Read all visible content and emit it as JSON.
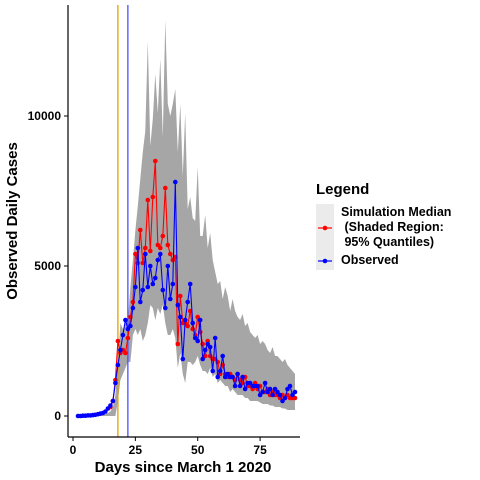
{
  "chart_data": {
    "type": "line",
    "title": "",
    "xlabel": "Days since March 1 2020",
    "ylabel": "Observed Daily Cases",
    "xlim": [
      -2,
      91
    ],
    "ylim": [
      -700,
      13700
    ],
    "x_ticks": [
      0,
      25,
      50,
      75
    ],
    "y_ticks": [
      0,
      5000,
      10000
    ],
    "grid": false,
    "legend": {
      "title": "Legend",
      "placement": "right",
      "entries": [
        {
          "lines": [
            "Simulation Median",
            " (Shaded Region:",
            " 95% Quantiles)"
          ],
          "color": "#ff0000"
        },
        {
          "lines": [
            "Observed"
          ],
          "color": "#0000ff"
        }
      ]
    },
    "vlines": [
      {
        "x": 18,
        "color": "#e69f00"
      },
      {
        "x": 22,
        "color": "#4d4dff"
      }
    ],
    "band": {
      "color": "#a6a6a6",
      "x": [
        0,
        1,
        2,
        3,
        4,
        5,
        6,
        7,
        8,
        9,
        10,
        11,
        12,
        13,
        14,
        15,
        16,
        17,
        18,
        19,
        20,
        21,
        22,
        23,
        24,
        25,
        26,
        27,
        28,
        29,
        30,
        31,
        32,
        33,
        34,
        35,
        36,
        37,
        38,
        39,
        40,
        41,
        42,
        43,
        44,
        45,
        46,
        47,
        48,
        49,
        50,
        51,
        52,
        53,
        54,
        55,
        56,
        57,
        58,
        59,
        60,
        61,
        62,
        63,
        64,
        65,
        66,
        67,
        68,
        69,
        70,
        71,
        72,
        73,
        74,
        75,
        76,
        77,
        78,
        79,
        80,
        81,
        82,
        83,
        84,
        85,
        86,
        87,
        88,
        89
      ],
      "upper": [
        0,
        0,
        0,
        0,
        0,
        0,
        0,
        0,
        0,
        20,
        30,
        40,
        50,
        70,
        100,
        150,
        300,
        700,
        1800,
        3100,
        2900,
        3100,
        3200,
        4300,
        5200,
        6200,
        7000,
        7900,
        8800,
        9500,
        12500,
        9000,
        9900,
        11400,
        10100,
        11900,
        9300,
        13200,
        10400,
        10000,
        10400,
        10900,
        8800,
        10400,
        8000,
        10100,
        6900,
        7300,
        6600,
        6500,
        8300,
        6000,
        6000,
        6700,
        5600,
        6100,
        5200,
        4800,
        4400,
        4500,
        3900,
        4300,
        4000,
        3500,
        3900,
        3500,
        3300,
        3200,
        3400,
        3000,
        3100,
        2800,
        2700,
        2600,
        2700,
        2400,
        2500,
        2400,
        2200,
        2100,
        2300,
        2000,
        2000,
        1900,
        1800,
        1900,
        1700,
        1600,
        1500,
        1400
      ],
      "lower": [
        0,
        0,
        0,
        0,
        0,
        0,
        0,
        0,
        0,
        0,
        0,
        0,
        0,
        0,
        0,
        0,
        0,
        0,
        500,
        1200,
        1400,
        1600,
        1800,
        1800,
        2700,
        2900,
        2700,
        2900,
        2500,
        2700,
        3100,
        3700,
        3600,
        3200,
        3600,
        3400,
        3700,
        3100,
        2700,
        2700,
        2900,
        2600,
        1600,
        2100,
        1400,
        1100,
        1800,
        1800,
        1700,
        1800,
        2000,
        1700,
        1500,
        1500,
        1400,
        1600,
        1300,
        1400,
        1100,
        1200,
        1100,
        1000,
        1000,
        800,
        900,
        800,
        700,
        700,
        700,
        600,
        600,
        500,
        500,
        500,
        500,
        450,
        400,
        400,
        400,
        350,
        350,
        300,
        300,
        300,
        250,
        250,
        200,
        200,
        200,
        200
      ]
    },
    "series": [
      {
        "name": "Simulation Median",
        "color": "#ff0000",
        "x": [
          15,
          16,
          17,
          18,
          19,
          20,
          21,
          22,
          23,
          24,
          25,
          26,
          27,
          28,
          29,
          30,
          31,
          32,
          33,
          34,
          35,
          36,
          37,
          38,
          39,
          40,
          41,
          42,
          43,
          44,
          45,
          46,
          47,
          48,
          49,
          50,
          51,
          52,
          53,
          54,
          55,
          56,
          57,
          58,
          59,
          60,
          61,
          62,
          63,
          64,
          65,
          66,
          67,
          68,
          69,
          70,
          71,
          72,
          73,
          74,
          75,
          76,
          77,
          78,
          79,
          80,
          81,
          82,
          83,
          84,
          85,
          86,
          87,
          88,
          89
        ],
        "y": [
          300,
          500,
          1200,
          2500,
          2100,
          2200,
          2100,
          2600,
          3300,
          3800,
          5400,
          5100,
          6200,
          5100,
          5600,
          7200,
          5500,
          7300,
          8500,
          5700,
          5600,
          6000,
          7600,
          5700,
          5400,
          5200,
          5300,
          2400,
          4000,
          3100,
          3100,
          3000,
          3500,
          2900,
          2700,
          3300,
          2800,
          2400,
          2000,
          2500,
          2000,
          1900,
          1900,
          1800,
          1400,
          1700,
          1400,
          1300,
          1400,
          1300,
          1200,
          1400,
          1200,
          1100,
          1300,
          1000,
          1000,
          900,
          1100,
          900,
          1000,
          800,
          800,
          900,
          700,
          800,
          700,
          700,
          600,
          700,
          600,
          700,
          600,
          600,
          600
        ]
      },
      {
        "name": "Observed",
        "color": "#0000ff",
        "x": [
          2,
          3,
          4,
          5,
          6,
          7,
          8,
          9,
          10,
          11,
          12,
          13,
          14,
          15,
          16,
          17,
          18,
          19,
          20,
          21,
          22,
          23,
          24,
          25,
          26,
          27,
          28,
          29,
          30,
          31,
          32,
          33,
          34,
          35,
          36,
          37,
          38,
          39,
          40,
          41,
          42,
          43,
          44,
          45,
          46,
          47,
          48,
          49,
          50,
          51,
          52,
          53,
          54,
          55,
          56,
          57,
          58,
          59,
          60,
          61,
          62,
          63,
          64,
          65,
          66,
          67,
          68,
          69,
          70,
          71,
          72,
          73,
          74,
          75,
          76,
          77,
          78,
          79,
          80,
          81,
          82,
          83,
          84,
          85,
          86,
          87,
          88,
          89
        ],
        "y": [
          0,
          0,
          10,
          10,
          20,
          20,
          30,
          40,
          60,
          80,
          100,
          150,
          250,
          350,
          500,
          1100,
          1700,
          2200,
          2700,
          3200,
          2900,
          3000,
          3600,
          4300,
          5600,
          3800,
          4200,
          5400,
          4300,
          5000,
          4400,
          4600,
          5200,
          5400,
          4200,
          3600,
          5000,
          3900,
          4400,
          7800,
          3700,
          3300,
          1900,
          3200,
          3800,
          4400,
          3100,
          2600,
          2500,
          3200,
          1900,
          2200,
          2400,
          2300,
          1500,
          2600,
          1300,
          1500,
          2000,
          1300,
          1400,
          1300,
          1300,
          1000,
          1400,
          1000,
          1300,
          900,
          1100,
          1100,
          1000,
          1000,
          1000,
          700,
          800,
          1100,
          800,
          900,
          700,
          900,
          800,
          700,
          500,
          600,
          900,
          1000,
          700,
          800
        ]
      }
    ]
  }
}
